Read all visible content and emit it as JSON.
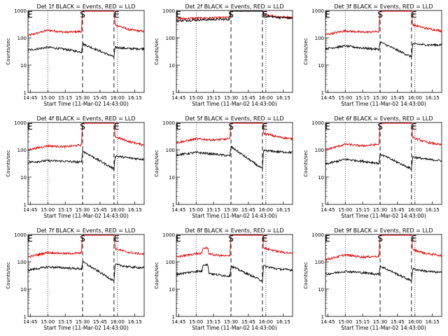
{
  "shared": {
    "xlabel": "Start Time (11-Mar-02 14:43:00)",
    "ylabel": "Counts/sec",
    "x_tick_labels": [
      "14:45",
      "15:00",
      "15:15",
      "15:30",
      "15:45",
      "16:00",
      "16:15"
    ],
    "y_tick_labels": [
      "1",
      "10",
      "100",
      "1000"
    ],
    "markers": [
      {
        "label": "S",
        "time": "15:30"
      },
      {
        "label": "E",
        "time": "15:57"
      },
      {
        "label": "E",
        "time": "14:43"
      }
    ],
    "colors": {
      "events": "#000000",
      "lld": "#e00000"
    }
  },
  "chart_data": [
    {
      "type": "line",
      "title": "Det 1f BLACK = Events, RED = LLD",
      "xlim": [
        "14:43",
        "16:23"
      ],
      "ylim": [
        1,
        1000
      ],
      "yscale": "log",
      "series": [
        {
          "values": {
            "x": [
              "14:43",
              "15:00",
              "15:15",
              "15:29",
              "15:30",
              "15:33",
              "15:57",
              "15:58",
              "16:10",
              "16:23"
            ],
            "y": [
              120,
              190,
              160,
              170,
              1200,
              1200,
              1200,
              300,
              200,
              170
            ]
          },
          "color": "#e00000"
        },
        {
          "values": {
            "x": [
              "14:43",
              "15:00",
              "15:15",
              "15:29",
              "15:30",
              "15:57",
              "15:58",
              "16:10",
              "16:23"
            ],
            "y": [
              35,
              45,
              38,
              30,
              60,
              20,
              45,
              40,
              40
            ]
          },
          "color": "#000000"
        }
      ]
    },
    {
      "type": "line",
      "title": "Det 2f BLACK = Events, RED = LLD",
      "xlim": [
        "14:43",
        "16:23"
      ],
      "ylim": [
        1,
        1000
      ],
      "yscale": "log",
      "series": [
        {
          "values": {
            "x": [
              "14:43",
              "15:00",
              "15:15",
              "15:29",
              "15:30",
              "15:33",
              "15:57",
              "15:58",
              "16:10",
              "16:23"
            ],
            "y": [
              500,
              520,
              540,
              560,
              1200,
              1200,
              1200,
              700,
              600,
              550
            ]
          },
          "color": "#e00000"
        },
        {
          "values": {
            "x": [
              "14:43",
              "15:00",
              "15:15",
              "15:29",
              "15:30",
              "15:57",
              "15:58",
              "16:10",
              "16:23"
            ],
            "y": [
              420,
              450,
              470,
              480,
              1000,
              1000,
              650,
              560,
              520
            ]
          },
          "color": "#000000"
        }
      ]
    },
    {
      "type": "line",
      "title": "Det 3f BLACK = Events, RED = LLD",
      "xlim": [
        "14:43",
        "16:23"
      ],
      "ylim": [
        1,
        1000
      ],
      "yscale": "log",
      "series": [
        {
          "values": {
            "x": [
              "14:43",
              "15:00",
              "15:15",
              "15:29",
              "15:30",
              "15:33",
              "15:57",
              "15:58",
              "16:10",
              "16:23"
            ],
            "y": [
              130,
              180,
              160,
              170,
              1200,
              1200,
              1200,
              300,
              220,
              180
            ]
          },
          "color": "#e00000"
        },
        {
          "values": {
            "x": [
              "14:43",
              "15:00",
              "15:15",
              "15:29",
              "15:30",
              "15:57",
              "15:58",
              "16:10",
              "16:23"
            ],
            "y": [
              40,
              50,
              42,
              38,
              70,
              20,
              60,
              55,
              55
            ]
          },
          "color": "#000000"
        }
      ]
    },
    {
      "type": "line",
      "title": "Det 4f BLACK = Events, RED = LLD",
      "xlim": [
        "14:43",
        "16:23"
      ],
      "ylim": [
        1,
        1000
      ],
      "yscale": "log",
      "series": [
        {
          "values": {
            "x": [
              "14:43",
              "15:00",
              "15:15",
              "15:29",
              "15:30",
              "15:33",
              "15:57",
              "15:58",
              "16:10",
              "16:23"
            ],
            "y": [
              100,
              140,
              130,
              150,
              1200,
              1200,
              1200,
              300,
              200,
              150
            ]
          },
          "color": "#e00000"
        },
        {
          "values": {
            "x": [
              "14:43",
              "15:00",
              "15:15",
              "15:29",
              "15:30",
              "15:57",
              "15:58",
              "16:10",
              "16:23"
            ],
            "y": [
              35,
              40,
              38,
              35,
              90,
              20,
              60,
              50,
              45
            ]
          },
          "color": "#000000"
        }
      ]
    },
    {
      "type": "line",
      "title": "Det 5f BLACK = Events, RED = LLD",
      "xlim": [
        "14:43",
        "16:23"
      ],
      "ylim": [
        1,
        1000
      ],
      "yscale": "log",
      "series": [
        {
          "values": {
            "x": [
              "14:43",
              "15:00",
              "15:15",
              "15:29",
              "15:30",
              "15:33",
              "15:57",
              "15:58",
              "16:10",
              "16:23"
            ],
            "y": [
              180,
              250,
              230,
              250,
              1200,
              1200,
              1200,
              400,
              300,
              250
            ]
          },
          "color": "#e00000"
        },
        {
          "values": {
            "x": [
              "14:43",
              "15:00",
              "15:15",
              "15:29",
              "15:30",
              "15:57",
              "15:58",
              "16:10",
              "16:23"
            ],
            "y": [
              65,
              80,
              70,
              60,
              130,
              20,
              95,
              85,
              80
            ]
          },
          "color": "#000000"
        }
      ]
    },
    {
      "type": "line",
      "title": "Det 6f BLACK = Events, RED = LLD",
      "xlim": [
        "14:43",
        "16:23"
      ],
      "ylim": [
        1,
        1000
      ],
      "yscale": "log",
      "series": [
        {
          "values": {
            "x": [
              "14:43",
              "15:00",
              "15:15",
              "15:29",
              "15:30",
              "15:33",
              "15:57",
              "15:58",
              "16:10",
              "16:23"
            ],
            "y": [
              100,
              160,
              140,
              160,
              1200,
              1200,
              1200,
              280,
              190,
              150
            ]
          },
          "color": "#e00000"
        },
        {
          "values": {
            "x": [
              "14:43",
              "15:00",
              "15:15",
              "15:29",
              "15:30",
              "15:57",
              "15:58",
              "16:10",
              "16:23"
            ],
            "y": [
              30,
              45,
              38,
              32,
              70,
              20,
              55,
              45,
              40
            ]
          },
          "color": "#000000"
        }
      ]
    },
    {
      "type": "line",
      "title": "Det 7f BLACK = Events, RED = LLD",
      "xlim": [
        "14:43",
        "16:23"
      ],
      "ylim": [
        1,
        1000
      ],
      "yscale": "log",
      "series": [
        {
          "values": {
            "x": [
              "14:43",
              "15:00",
              "15:15",
              "15:29",
              "15:30",
              "15:33",
              "15:57",
              "15:58",
              "16:10",
              "16:23"
            ],
            "y": [
              150,
              220,
              200,
              210,
              1200,
              1200,
              1200,
              300,
              220,
              190
            ]
          },
          "color": "#e00000"
        },
        {
          "values": {
            "x": [
              "14:43",
              "15:00",
              "15:15",
              "15:29",
              "15:30",
              "15:57",
              "15:58",
              "16:10",
              "16:23"
            ],
            "y": [
              50,
              65,
              60,
              55,
              100,
              20,
              80,
              65,
              60
            ]
          },
          "color": "#000000"
        }
      ]
    },
    {
      "type": "line",
      "title": "Det 8f BLACK = Events, RED = LLD",
      "xlim": [
        "14:43",
        "16:23"
      ],
      "ylim": [
        1,
        1000
      ],
      "yscale": "log",
      "series": [
        {
          "values": {
            "x": [
              "14:43",
              "15:00",
              "15:05",
              "15:06",
              "15:10",
              "15:11",
              "15:15",
              "15:29",
              "15:30",
              "15:33",
              "15:57",
              "15:58",
              "16:10",
              "16:23"
            ],
            "y": [
              150,
              200,
              200,
              320,
              320,
              200,
              180,
              160,
              1200,
              1200,
              1200,
              320,
              240,
              200
            ]
          },
          "color": "#e00000"
        },
        {
          "values": {
            "x": [
              "14:43",
              "15:00",
              "15:05",
              "15:06",
              "15:10",
              "15:11",
              "15:15",
              "15:29",
              "15:30",
              "15:57",
              "15:58",
              "16:10",
              "16:23"
            ],
            "y": [
              35,
              45,
              45,
              80,
              80,
              40,
              35,
              30,
              70,
              20,
              70,
              55,
              50
            ]
          },
          "color": "#000000"
        }
      ]
    },
    {
      "type": "line",
      "title": "Det 9f BLACK = Events, RED = LLD",
      "xlim": [
        "14:43",
        "16:23"
      ],
      "ylim": [
        1,
        1000
      ],
      "yscale": "log",
      "series": [
        {
          "values": {
            "x": [
              "14:43",
              "15:00",
              "15:15",
              "15:29",
              "15:30",
              "15:33",
              "15:57",
              "15:58",
              "16:10",
              "16:23"
            ],
            "y": [
              120,
              180,
              150,
              160,
              1200,
              1200,
              1200,
              280,
              200,
              170
            ]
          },
          "color": "#e00000"
        },
        {
          "values": {
            "x": [
              "14:43",
              "15:00",
              "15:15",
              "15:29",
              "15:30",
              "15:57",
              "15:58",
              "16:10",
              "16:23"
            ],
            "y": [
              35,
              45,
              40,
              35,
              70,
              20,
              55,
              45,
              40
            ]
          },
          "color": "#000000"
        }
      ]
    }
  ]
}
